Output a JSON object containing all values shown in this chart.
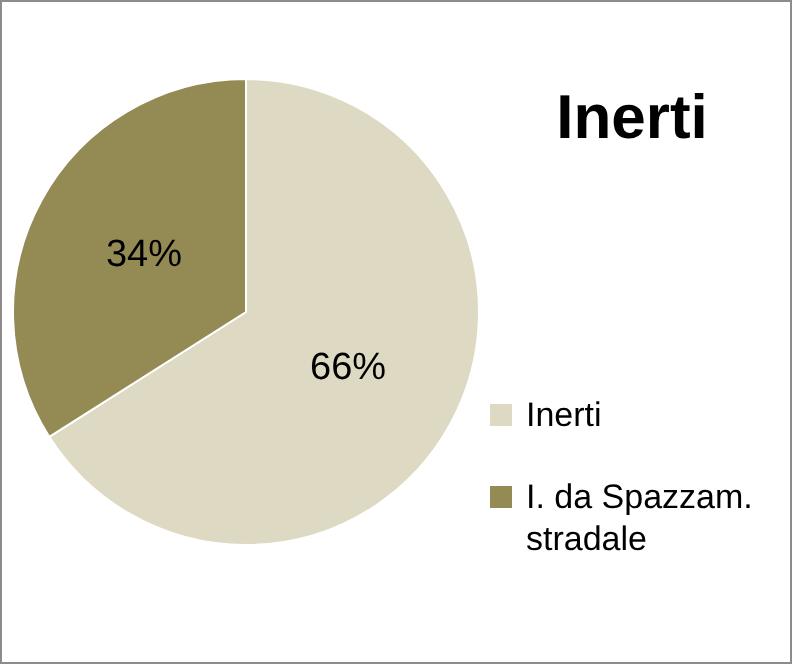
{
  "chart_data": {
    "type": "pie",
    "title": "Inerti",
    "categories": [
      "Inerti",
      "I. da Spazzam. stradale"
    ],
    "values": [
      66,
      34
    ],
    "colors": [
      "#ddd9c3",
      "#948a54"
    ],
    "value_labels": [
      "66%",
      "34%"
    ],
    "legend": "right"
  }
}
